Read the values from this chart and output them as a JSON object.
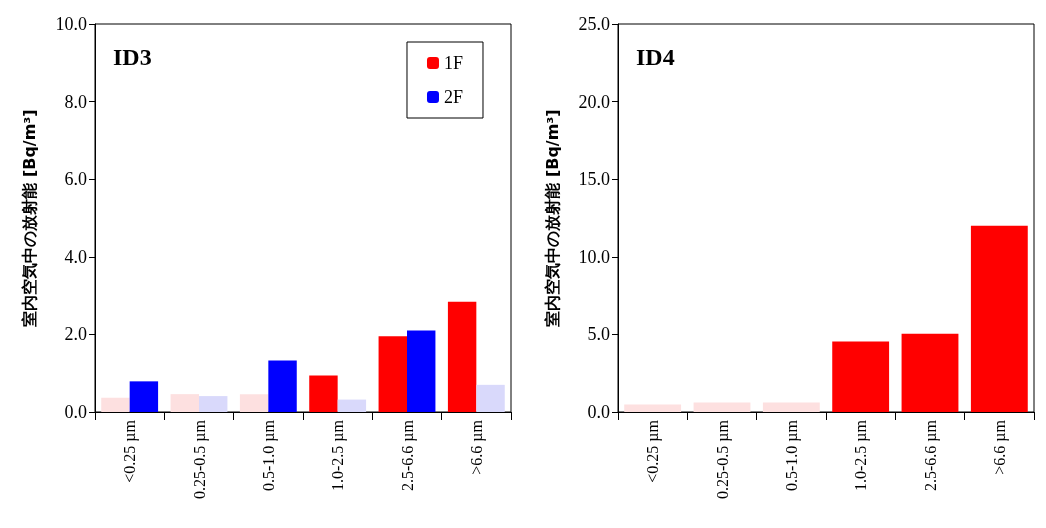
{
  "chart_data": [
    {
      "type": "bar",
      "title": "ID3",
      "ylabel": "室内空気中の放射能 [Bq/m³]",
      "categories": [
        "<0.25 µm",
        "0.25-0.5 µm",
        "0.5-1.0 µm",
        "1.0-2.5 µm",
        "2.5-6.6 µm",
        ">6.6 µm"
      ],
      "series": [
        {
          "name": "1F",
          "color": "#ff0000",
          "colors": [
            "#fde0e0",
            "#fde0e0",
            "#fde0e0",
            "#ff0000",
            "#ff0000",
            "#ff0000"
          ],
          "values": [
            0.37,
            0.46,
            0.46,
            0.94,
            1.95,
            2.84
          ]
        },
        {
          "name": "2F",
          "color": "#0000ff",
          "colors": [
            "#0000ff",
            "#d9d9fb",
            "#0000ff",
            "#d9d9fb",
            "#0000ff",
            "#d9d9fb"
          ],
          "values": [
            0.79,
            0.41,
            1.33,
            0.32,
            2.1,
            0.7
          ]
        }
      ],
      "ylim": [
        0,
        10
      ],
      "yticks": [
        {
          "value": 0,
          "label": "0.0"
        },
        {
          "value": 2,
          "label": "2.0"
        },
        {
          "value": 4,
          "label": "4.0"
        },
        {
          "value": 6,
          "label": "6.0"
        },
        {
          "value": 8,
          "label": "8.0"
        },
        {
          "value": 10,
          "label": "10.0"
        }
      ],
      "grid": false,
      "legend": "top right"
    },
    {
      "type": "bar",
      "title": "ID4",
      "ylabel": "室内空気中の放射能 [Bq/m³]",
      "categories": [
        "<0.25 µm",
        "0.25-0.5 µm",
        "0.5-1.0 µm",
        "1.0-2.5 µm",
        "2.5-6.6 µm",
        ">6.6 µm"
      ],
      "series": [
        {
          "color": "#ff0000",
          "colors": [
            "#fde0e0",
            "#fde0e0",
            "#fde0e0",
            "#ff0000",
            "#ff0000",
            "#ff0000"
          ],
          "values": [
            0.49,
            0.62,
            0.62,
            4.55,
            5.04,
            12.0
          ]
        }
      ],
      "ylim": [
        0,
        25
      ],
      "yticks": [
        {
          "value": 0,
          "label": "0.0"
        },
        {
          "value": 5,
          "label": "5.0"
        },
        {
          "value": 10,
          "label": "10.0"
        },
        {
          "value": 15,
          "label": "15.0"
        },
        {
          "value": 20,
          "label": "20.0"
        },
        {
          "value": 25,
          "label": "25.0"
        }
      ],
      "grid": false,
      "legend": false
    }
  ]
}
